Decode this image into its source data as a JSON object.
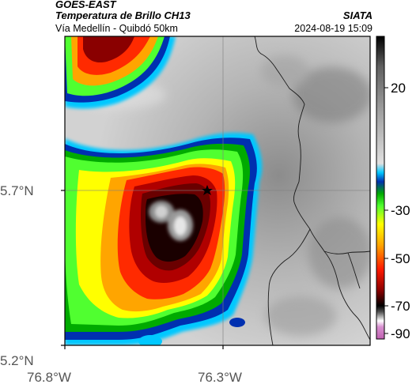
{
  "header": {
    "satellite": "GOES-EAST",
    "product": "Temperatura de Brillo CH13",
    "route": "Vía Medellín - Quibdó 50km",
    "agency": "SIATA",
    "datetime": "2024-08-19 15:09"
  },
  "map": {
    "lat_ticks": [
      "5.7°N",
      "5.2°N"
    ],
    "lon_ticks": [
      "76.8°W",
      "76.3°W"
    ],
    "marker": "star",
    "gridlines": true
  },
  "colorbar": {
    "ticks": [
      "20",
      "-30",
      "-50",
      "-70",
      "-90"
    ],
    "colors": [
      "#c060b0",
      "#ffffff",
      "#303030",
      "#000000",
      "#8a0000",
      "#ff1a00",
      "#ffa500",
      "#ffff00",
      "#50ff30",
      "#00aa00",
      "#0030b0",
      "#00c8ff",
      "#d0d0d0",
      "#606060",
      "#000000"
    ]
  }
}
